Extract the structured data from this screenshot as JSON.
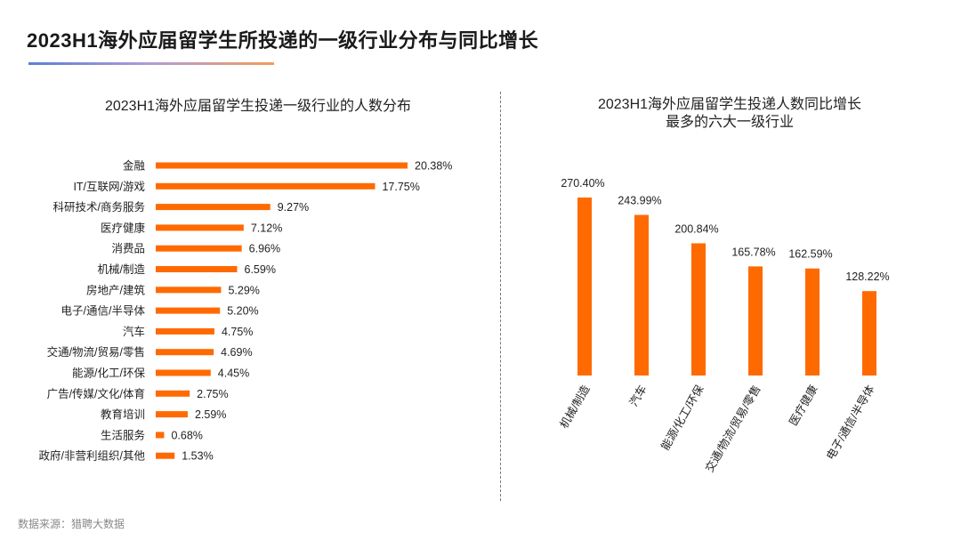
{
  "page": {
    "title": "2023H1海外应届留学生所投递的一级行业分布与同比增长",
    "source": "数据来源：猎聘大数据"
  },
  "colors": {
    "bar": "#ff6a00",
    "text": "#222222",
    "accent_line": [
      "#5b7fd6",
      "#f29b5a"
    ]
  },
  "chart_data": [
    {
      "type": "bar",
      "orientation": "horizontal",
      "title": "2023H1海外应届留学生投递一级行业的人数分布",
      "categories": [
        "金融",
        "IT/互联网/游戏",
        "科研技术/商务服务",
        "医疗健康",
        "消费品",
        "机械/制造",
        "房地产/建筑",
        "电子/通信/半导体",
        "汽车",
        "交通/物流/贸易/零售",
        "能源/化工/环保",
        "广告/传媒/文化/体育",
        "教育培训",
        "生活服务",
        "政府/非营利组织/其他"
      ],
      "values": [
        20.38,
        17.75,
        9.27,
        7.12,
        6.96,
        6.59,
        5.29,
        5.2,
        4.75,
        4.69,
        4.45,
        2.75,
        2.59,
        0.68,
        1.53
      ],
      "value_labels": [
        "20.38%",
        "17.75%",
        "9.27%",
        "7.12%",
        "6.96%",
        "6.59%",
        "5.29%",
        "5.20%",
        "4.75%",
        "4.69%",
        "4.45%",
        "2.75%",
        "2.59%",
        "0.68%",
        "1.53%"
      ],
      "unit": "%",
      "grid": false
    },
    {
      "type": "bar",
      "orientation": "vertical",
      "title": [
        "2023H1海外应届留学生投递人数同比增长",
        "最多的六大一级行业"
      ],
      "categories": [
        "机械/制造",
        "汽车",
        "能源/化工/环保",
        "交通/物流/贸易/零售",
        "医疗健康",
        "电子/通信/半导体"
      ],
      "values": [
        270.4,
        243.99,
        200.84,
        165.78,
        162.59,
        128.22
      ],
      "value_labels": [
        "270.40%",
        "243.99%",
        "200.84%",
        "165.78%",
        "162.59%",
        "128.22%"
      ],
      "unit": "%",
      "grid": false
    }
  ]
}
